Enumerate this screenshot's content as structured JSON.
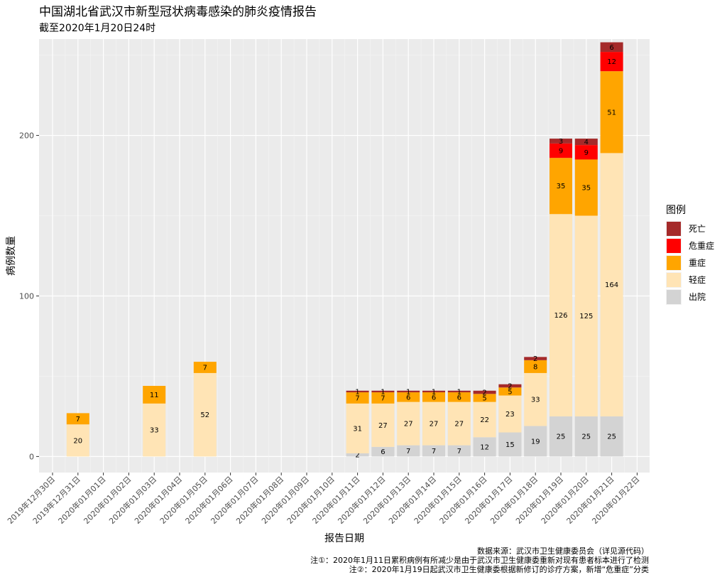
{
  "chart_data": {
    "type": "bar",
    "stacked": true,
    "title": "中国湖北省武汉市新型冠状病毒感染的肺炎疫情报告",
    "subtitle": "截至2020年1月20日24时",
    "xlabel": "报告日期",
    "ylabel": "病例数量",
    "ylim": [
      -10,
      260
    ],
    "yticks": [
      0,
      100,
      200
    ],
    "grid": true,
    "legend_position": "right",
    "legend_title": "图例",
    "categories": [
      "2019年12月30日",
      "2019年12月31日",
      "2020年01月01日",
      "2020年01月02日",
      "2020年01月03日",
      "2020年01月04日",
      "2020年01月05日",
      "2020年01月06日",
      "2020年01月07日",
      "2020年01月08日",
      "2020年01月09日",
      "2020年01月10日",
      "2020年01月11日",
      "2020年01月12日",
      "2020年01月13日",
      "2020年01月14日",
      "2020年01月15日",
      "2020年01月16日",
      "2020年01月17日",
      "2020年01月18日",
      "2020年01月19日",
      "2020年01月20日",
      "2020年01月21日",
      "2020年01月22日"
    ],
    "series": [
      {
        "name": "出院",
        "color": "#d3d3d3",
        "values": [
          0,
          0,
          0,
          0,
          0,
          0,
          0,
          0,
          0,
          0,
          0,
          0,
          2,
          6,
          7,
          7,
          7,
          12,
          15,
          19,
          25,
          25,
          25,
          0
        ]
      },
      {
        "name": "轻症",
        "color": "#ffe4b5",
        "values": [
          0,
          20,
          0,
          0,
          33,
          0,
          52,
          0,
          0,
          0,
          0,
          0,
          31,
          27,
          27,
          27,
          27,
          22,
          23,
          33,
          126,
          125,
          164,
          0
        ]
      },
      {
        "name": "重症",
        "color": "#ffa500",
        "values": [
          0,
          7,
          0,
          0,
          11,
          0,
          7,
          0,
          0,
          0,
          0,
          0,
          7,
          7,
          6,
          6,
          6,
          5,
          5,
          8,
          35,
          35,
          51,
          0
        ]
      },
      {
        "name": "危重症",
        "color": "#ff0000",
        "values": [
          0,
          0,
          0,
          0,
          0,
          0,
          0,
          0,
          0,
          0,
          0,
          0,
          0,
          0,
          0,
          0,
          0,
          0,
          0,
          0,
          9,
          9,
          12,
          0
        ]
      },
      {
        "name": "死亡",
        "color": "#a52a2a",
        "values": [
          0,
          0,
          0,
          0,
          0,
          0,
          0,
          0,
          0,
          0,
          0,
          0,
          1,
          1,
          1,
          1,
          1,
          2,
          2,
          2,
          3,
          4,
          6,
          0
        ]
      }
    ],
    "legend_order": [
      "死亡",
      "危重症",
      "重症",
      "轻症",
      "出院"
    ]
  },
  "notes": [
    "数据来源：武汉市卫生健康委员会（详见源代码）",
    "注①：2020年1月11日累积病例有所减少是由于武汉市卫生健康委重新对现有患者标本进行了检测",
    "注②：2020年1月19日起武汉市卫生健康委根据新修订的诊疗方案，新增“危重症”分类"
  ]
}
